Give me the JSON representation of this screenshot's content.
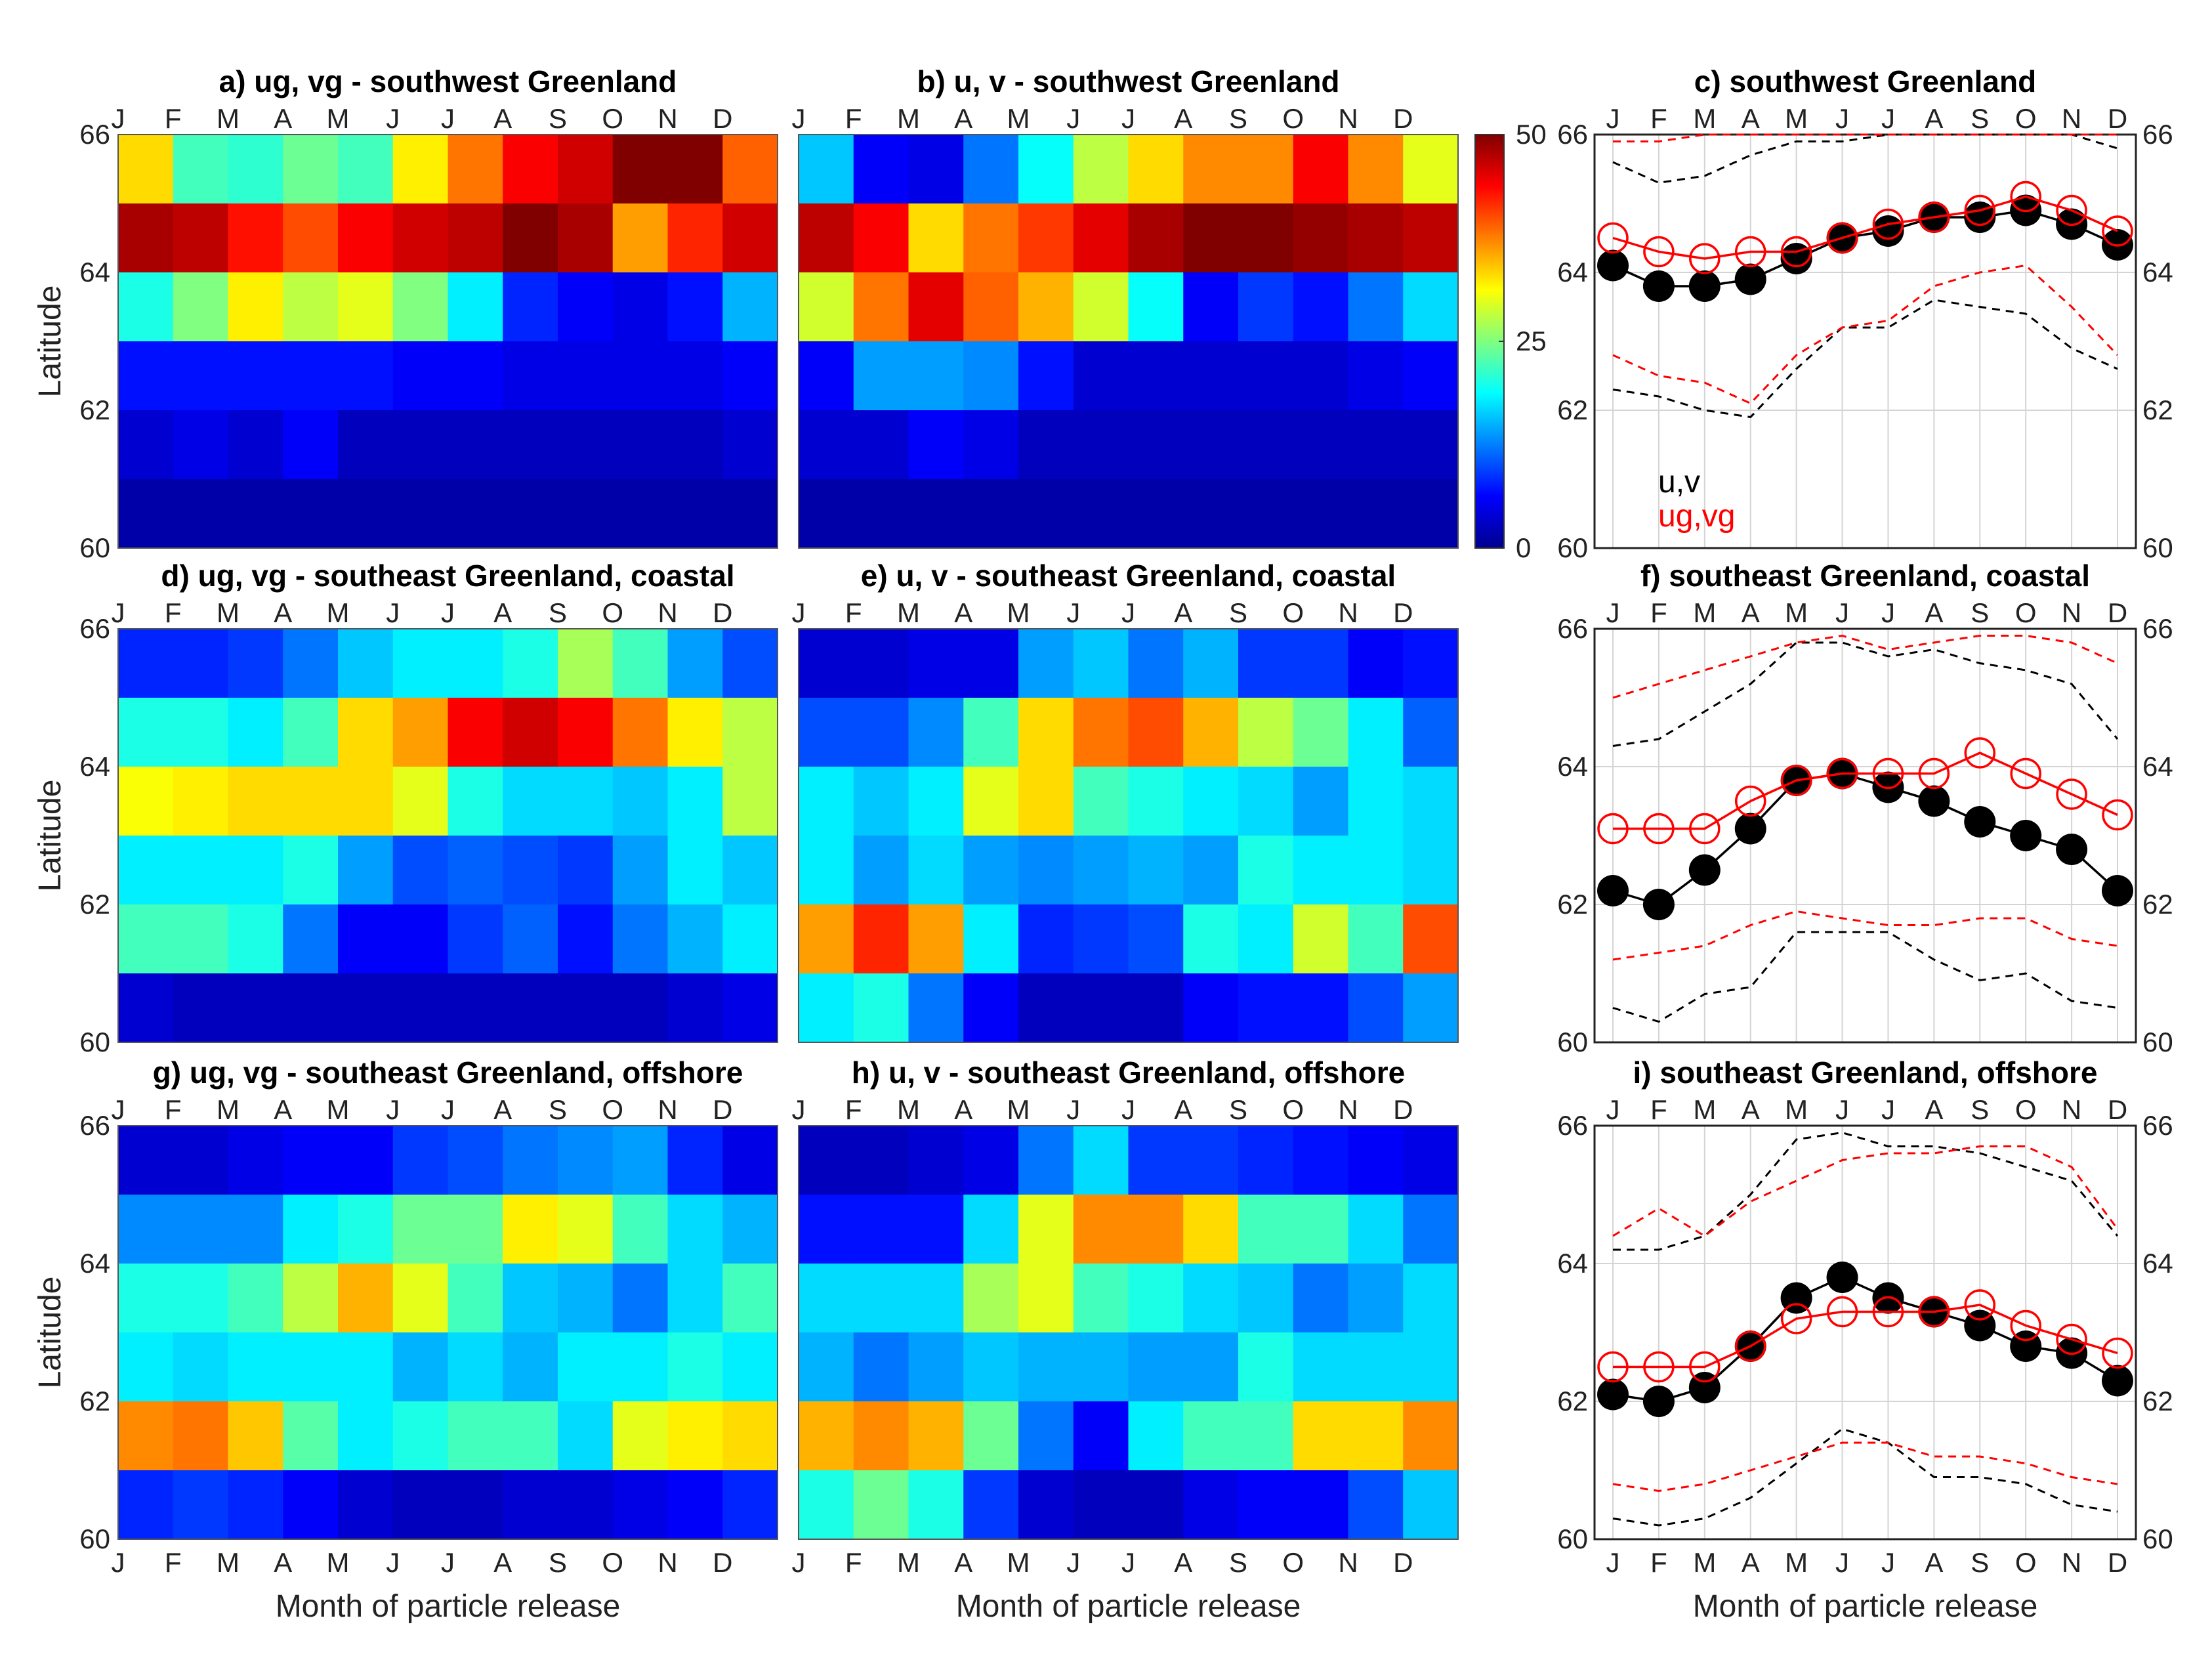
{
  "months": [
    "J",
    "F",
    "M",
    "A",
    "M",
    "J",
    "J",
    "A",
    "S",
    "O",
    "N",
    "D"
  ],
  "latitude_ticks": [
    "60",
    "62",
    "64",
    "66"
  ],
  "ylabel": "Latitude",
  "xlabel": "Month of particle release",
  "colorbar": {
    "ticks": [
      "0",
      "25",
      "50"
    ],
    "min": 0,
    "max": 50,
    "colormap": "jet"
  },
  "legend": {
    "uv": "u,v",
    "ugvg": "ug,vg",
    "uv_color": "#000000",
    "ugvg_color": "#ff0000"
  },
  "chart_data": [
    {
      "type": "heatmap",
      "title": "a) ug, vg - southwest Greenland",
      "rows_lat_from_top": [
        "65-66",
        "64-65",
        "63-64",
        "62-63",
        "61-62",
        "60-61"
      ],
      "values": [
        [
          33,
          22,
          21,
          24,
          22,
          32,
          38,
          44,
          46,
          50,
          50,
          39
        ],
        [
          48,
          47,
          43,
          40,
          44,
          46,
          47,
          50,
          48,
          36,
          42,
          46
        ],
        [
          20,
          25,
          32,
          28,
          30,
          25,
          18,
          8,
          6,
          5,
          7,
          15
        ],
        [
          7,
          7,
          7,
          7,
          7,
          6,
          6,
          5,
          5,
          5,
          5,
          6
        ],
        [
          4,
          5,
          4,
          6,
          3,
          3,
          3,
          3,
          3,
          3,
          3,
          4
        ],
        [
          2,
          2,
          2,
          2,
          2,
          2,
          2,
          2,
          2,
          2,
          2,
          2
        ]
      ]
    },
    {
      "type": "heatmap",
      "title": "b) u, v - southwest Greenland",
      "rows_lat_from_top": [
        "65-66",
        "64-65",
        "63-64",
        "62-63",
        "61-62",
        "60-61"
      ],
      "values": [
        [
          16,
          6,
          5,
          12,
          19,
          28,
          33,
          37,
          37,
          44,
          37,
          30
        ],
        [
          47,
          44,
          33,
          38,
          41,
          45,
          48,
          50,
          50,
          49,
          48,
          47
        ],
        [
          29,
          38,
          45,
          39,
          35,
          29,
          19,
          6,
          9,
          7,
          12,
          17
        ],
        [
          6,
          14,
          14,
          13,
          7,
          4,
          4,
          4,
          4,
          4,
          5,
          6
        ],
        [
          4,
          4,
          6,
          5,
          3,
          3,
          3,
          3,
          3,
          3,
          3,
          3
        ],
        [
          2,
          2,
          2,
          2,
          2,
          2,
          2,
          2,
          2,
          2,
          2,
          2
        ]
      ]
    },
    {
      "type": "line",
      "title": "c) southwest Greenland",
      "ylim": [
        60,
        66
      ],
      "series": [
        {
          "name": "u,v",
          "values": [
            64.1,
            63.8,
            63.8,
            63.9,
            64.2,
            64.5,
            64.6,
            64.8,
            64.8,
            64.9,
            64.7,
            64.4
          ]
        },
        {
          "name": "ug,vg",
          "values": [
            64.5,
            64.3,
            64.2,
            64.3,
            64.3,
            64.5,
            64.7,
            64.8,
            64.9,
            65.1,
            64.9,
            64.6
          ]
        },
        {
          "name": "u,v spread upper",
          "values": [
            65.6,
            65.3,
            65.4,
            65.7,
            65.9,
            65.9,
            66,
            66,
            66,
            66,
            66,
            65.8
          ]
        },
        {
          "name": "u,v spread lower",
          "values": [
            62.3,
            62.2,
            62,
            61.9,
            62.6,
            63.2,
            63.2,
            63.6,
            63.5,
            63.4,
            62.9,
            62.6
          ]
        },
        {
          "name": "ug,vg spread upper",
          "values": [
            65.9,
            65.9,
            66,
            66,
            66,
            66,
            66,
            66,
            66,
            66,
            66,
            66
          ]
        },
        {
          "name": "ug,vg spread lower",
          "values": [
            62.8,
            62.5,
            62.4,
            62.1,
            62.8,
            63.2,
            63.3,
            63.8,
            64,
            64.1,
            63.5,
            62.8
          ]
        }
      ]
    },
    {
      "type": "heatmap",
      "title": "d) ug, vg - southeast Greenland, coastal",
      "rows_lat_from_top": [
        "65-66",
        "64-65",
        "63-64",
        "62-63",
        "61-62",
        "60-61"
      ],
      "values": [
        [
          8,
          8,
          9,
          12,
          16,
          18,
          18,
          20,
          27,
          22,
          14,
          10
        ],
        [
          20,
          20,
          18,
          22,
          33,
          36,
          44,
          46,
          44,
          38,
          32,
          28
        ],
        [
          31,
          32,
          33,
          33,
          33,
          30,
          20,
          17,
          17,
          16,
          18,
          28
        ],
        [
          18,
          18,
          18,
          20,
          14,
          10,
          11,
          10,
          9,
          14,
          18,
          16
        ],
        [
          22,
          22,
          20,
          12,
          6,
          6,
          9,
          11,
          7,
          12,
          15,
          18
        ],
        [
          4,
          3,
          3,
          3,
          3,
          3,
          3,
          3,
          3,
          3,
          4,
          5
        ]
      ]
    },
    {
      "type": "heatmap",
      "title": "e) u, v - southeast Greenland, coastal",
      "rows_lat_from_top": [
        "65-66",
        "64-65",
        "63-64",
        "62-63",
        "61-62",
        "60-61"
      ],
      "values": [
        [
          4,
          4,
          5,
          5,
          14,
          16,
          12,
          15,
          9,
          9,
          6,
          7
        ],
        [
          10,
          10,
          13,
          22,
          33,
          38,
          40,
          35,
          28,
          24,
          18,
          11
        ],
        [
          18,
          16,
          18,
          30,
          33,
          22,
          20,
          18,
          17,
          14,
          18,
          17
        ],
        [
          18,
          14,
          17,
          14,
          13,
          14,
          15,
          14,
          20,
          18,
          18,
          17
        ],
        [
          36,
          42,
          36,
          18,
          8,
          9,
          10,
          20,
          18,
          29,
          22,
          40
        ],
        [
          18,
          20,
          12,
          6,
          3,
          3,
          3,
          6,
          7,
          7,
          10,
          14
        ]
      ]
    },
    {
      "type": "line",
      "title": "f) southeast Greenland, coastal",
      "ylim": [
        60,
        66
      ],
      "series": [
        {
          "name": "u,v",
          "values": [
            62.2,
            62,
            62.5,
            63.1,
            63.8,
            63.9,
            63.7,
            63.5,
            63.2,
            63,
            62.8,
            62.2
          ]
        },
        {
          "name": "ug,vg",
          "values": [
            63.1,
            63.1,
            63.1,
            63.5,
            63.8,
            63.9,
            63.9,
            63.9,
            64.2,
            63.9,
            63.6,
            63.3
          ]
        },
        {
          "name": "u,v spread upper",
          "values": [
            64.3,
            64.4,
            64.8,
            65.2,
            65.8,
            65.8,
            65.6,
            65.7,
            65.5,
            65.4,
            65.2,
            64.4
          ]
        },
        {
          "name": "u,v spread lower",
          "values": [
            60.5,
            60.3,
            60.7,
            60.8,
            61.6,
            61.6,
            61.6,
            61.2,
            60.9,
            61,
            60.6,
            60.5
          ]
        },
        {
          "name": "ug,vg spread upper",
          "values": [
            65,
            65.2,
            65.4,
            65.6,
            65.8,
            65.9,
            65.7,
            65.8,
            65.9,
            65.9,
            65.8,
            65.5
          ]
        },
        {
          "name": "ug,vg spread lower",
          "values": [
            61.2,
            61.3,
            61.4,
            61.7,
            61.9,
            61.8,
            61.7,
            61.7,
            61.8,
            61.8,
            61.5,
            61.4
          ]
        }
      ]
    },
    {
      "type": "heatmap",
      "title": "g) ug, vg - southeast Greenland, offshore",
      "rows_lat_from_top": [
        "65-66",
        "64-65",
        "63-64",
        "62-63",
        "61-62",
        "60-61"
      ],
      "values": [
        [
          4,
          4,
          5,
          6,
          6,
          9,
          10,
          12,
          13,
          14,
          8,
          5
        ],
        [
          13,
          13,
          13,
          18,
          20,
          24,
          24,
          32,
          30,
          22,
          17,
          15
        ],
        [
          20,
          20,
          22,
          28,
          35,
          30,
          22,
          16,
          15,
          12,
          17,
          22
        ],
        [
          18,
          17,
          18,
          18,
          18,
          15,
          17,
          15,
          18,
          18,
          20,
          18
        ],
        [
          37,
          38,
          34,
          23,
          18,
          20,
          22,
          22,
          17,
          30,
          32,
          33
        ],
        [
          8,
          9,
          8,
          6,
          4,
          3,
          3,
          4,
          4,
          5,
          6,
          8
        ]
      ]
    },
    {
      "type": "heatmap",
      "title": "h) u, v - southeast Greenland, offshore",
      "rows_lat_from_top": [
        "65-66",
        "64-65",
        "63-64",
        "62-63",
        "61-62",
        "60-61"
      ],
      "values": [
        [
          3,
          3,
          4,
          5,
          12,
          17,
          9,
          9,
          8,
          7,
          6,
          5
        ],
        [
          7,
          7,
          7,
          17,
          30,
          37,
          37,
          33,
          22,
          22,
          17,
          12
        ],
        [
          17,
          17,
          17,
          27,
          30,
          22,
          20,
          17,
          16,
          12,
          14,
          17
        ],
        [
          15,
          12,
          14,
          16,
          15,
          15,
          14,
          14,
          20,
          17,
          17,
          17
        ],
        [
          35,
          37,
          35,
          24,
          12,
          6,
          18,
          22,
          22,
          33,
          33,
          37
        ],
        [
          20,
          24,
          20,
          9,
          4,
          3,
          3,
          5,
          6,
          6,
          10,
          16
        ]
      ]
    },
    {
      "type": "line",
      "title": "i) southeast Greenland, offshore",
      "ylim": [
        60,
        66
      ],
      "series": [
        {
          "name": "u,v",
          "values": [
            62.1,
            62,
            62.2,
            62.8,
            63.5,
            63.8,
            63.5,
            63.3,
            63.1,
            62.8,
            62.7,
            62.3
          ]
        },
        {
          "name": "ug,vg",
          "values": [
            62.5,
            62.5,
            62.5,
            62.8,
            63.2,
            63.3,
            63.3,
            63.3,
            63.4,
            63.1,
            62.9,
            62.7
          ]
        },
        {
          "name": "u,v spread upper",
          "values": [
            64.2,
            64.2,
            64.4,
            65,
            65.8,
            65.9,
            65.7,
            65.7,
            65.6,
            65.4,
            65.2,
            64.4
          ]
        },
        {
          "name": "u,v spread lower",
          "values": [
            60.3,
            60.2,
            60.3,
            60.6,
            61.1,
            61.6,
            61.4,
            60.9,
            60.9,
            60.8,
            60.5,
            60.4
          ]
        },
        {
          "name": "ug,vg spread upper",
          "values": [
            64.4,
            64.8,
            64.4,
            64.9,
            65.2,
            65.5,
            65.6,
            65.6,
            65.7,
            65.7,
            65.4,
            64.5
          ]
        },
        {
          "name": "ug,vg spread lower",
          "values": [
            60.8,
            60.7,
            60.8,
            61,
            61.2,
            61.4,
            61.4,
            61.2,
            61.2,
            61.1,
            60.9,
            60.8
          ]
        }
      ]
    }
  ]
}
